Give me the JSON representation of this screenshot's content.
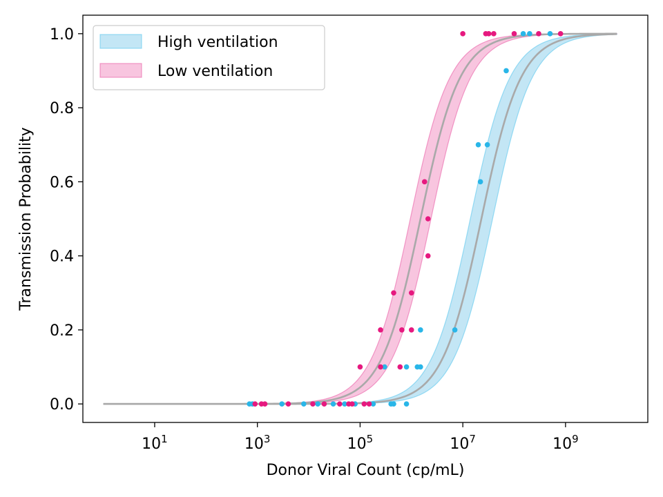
{
  "chart_data": {
    "type": "line",
    "title": "",
    "xlabel": "Donor Viral Count (cp/mL)",
    "ylabel": "Transmission Probability",
    "x_scale": "log",
    "xlim": [
      0.4,
      40000000000.0
    ],
    "ylim": [
      -0.05,
      1.05
    ],
    "x_ticks": [
      10,
      1000,
      100000,
      10000000,
      1000000000
    ],
    "x_tick_labels": [
      {
        "base": "10",
        "exp": "1"
      },
      {
        "base": "10",
        "exp": "3"
      },
      {
        "base": "10",
        "exp": "5"
      },
      {
        "base": "10",
        "exp": "7"
      },
      {
        "base": "10",
        "exp": "9"
      }
    ],
    "y_ticks": [
      "0.0",
      "0.2",
      "0.4",
      "0.6",
      "0.8",
      "1.0"
    ],
    "grid": false,
    "legend_position": "top-left",
    "series": [
      {
        "name": "High ventilation",
        "band_color": "#87ceeb",
        "band_edge_color": "#5bc8ef",
        "point_color": "#29b6e8",
        "curve_color": "#a9a9a9",
        "curve": {
          "midpoint": 23000000,
          "midpoint_low": 14000000,
          "midpoint_high": 38000000,
          "steepness": 2.6
        },
        "points": [
          {
            "x": 700,
            "y": 0.0
          },
          {
            "x": 800,
            "y": 0.0
          },
          {
            "x": 3000,
            "y": 0.0
          },
          {
            "x": 8000,
            "y": 0.0
          },
          {
            "x": 15000,
            "y": 0.0
          },
          {
            "x": 30000,
            "y": 0.0
          },
          {
            "x": 50000,
            "y": 0.0
          },
          {
            "x": 80000,
            "y": 0.0
          },
          {
            "x": 180000,
            "y": 0.0
          },
          {
            "x": 400000,
            "y": 0.0
          },
          {
            "x": 450000,
            "y": 0.0
          },
          {
            "x": 800000,
            "y": 0.0
          },
          {
            "x": 300000,
            "y": 0.1
          },
          {
            "x": 800000,
            "y": 0.1
          },
          {
            "x": 1300000,
            "y": 0.1
          },
          {
            "x": 1500000,
            "y": 0.1
          },
          {
            "x": 1500000,
            "y": 0.2
          },
          {
            "x": 7000000,
            "y": 0.2
          },
          {
            "x": 22000000,
            "y": 0.6
          },
          {
            "x": 20000000,
            "y": 0.7
          },
          {
            "x": 30000000,
            "y": 0.7
          },
          {
            "x": 70000000,
            "y": 0.9
          },
          {
            "x": 150000000,
            "y": 1.0
          },
          {
            "x": 200000000,
            "y": 1.0
          },
          {
            "x": 500000000,
            "y": 1.0
          }
        ]
      },
      {
        "name": "Low ventilation",
        "band_color": "#f28cc0",
        "band_edge_color": "#ea5fa6",
        "point_color": "#e6197f",
        "curve_color": "#a9a9a9",
        "curve": {
          "midpoint": 1500000,
          "midpoint_low": 950000,
          "midpoint_high": 2400000,
          "steepness": 2.6
        },
        "points": [
          {
            "x": 900,
            "y": 0.0
          },
          {
            "x": 1200,
            "y": 0.0
          },
          {
            "x": 1400,
            "y": 0.0
          },
          {
            "x": 4000,
            "y": 0.0
          },
          {
            "x": 12000,
            "y": 0.0
          },
          {
            "x": 20000,
            "y": 0.0
          },
          {
            "x": 40000,
            "y": 0.0
          },
          {
            "x": 60000,
            "y": 0.0
          },
          {
            "x": 70000,
            "y": 0.0
          },
          {
            "x": 120000,
            "y": 0.0
          },
          {
            "x": 150000,
            "y": 0.0
          },
          {
            "x": 100000,
            "y": 0.1
          },
          {
            "x": 250000,
            "y": 0.1
          },
          {
            "x": 600000,
            "y": 0.1
          },
          {
            "x": 250000,
            "y": 0.2
          },
          {
            "x": 650000,
            "y": 0.2
          },
          {
            "x": 1000000,
            "y": 0.2
          },
          {
            "x": 450000,
            "y": 0.3
          },
          {
            "x": 1000000,
            "y": 0.3
          },
          {
            "x": 2100000,
            "y": 0.4
          },
          {
            "x": 2100000,
            "y": 0.5
          },
          {
            "x": 1800000,
            "y": 0.6
          },
          {
            "x": 10000000,
            "y": 1.0
          },
          {
            "x": 28000000,
            "y": 1.0
          },
          {
            "x": 32000000,
            "y": 1.0
          },
          {
            "x": 40000000,
            "y": 1.0
          },
          {
            "x": 100000000,
            "y": 1.0
          },
          {
            "x": 300000000,
            "y": 1.0
          },
          {
            "x": 800000000,
            "y": 1.0
          }
        ]
      }
    ],
    "curve_x_range": [
      1,
      10000000000
    ]
  }
}
